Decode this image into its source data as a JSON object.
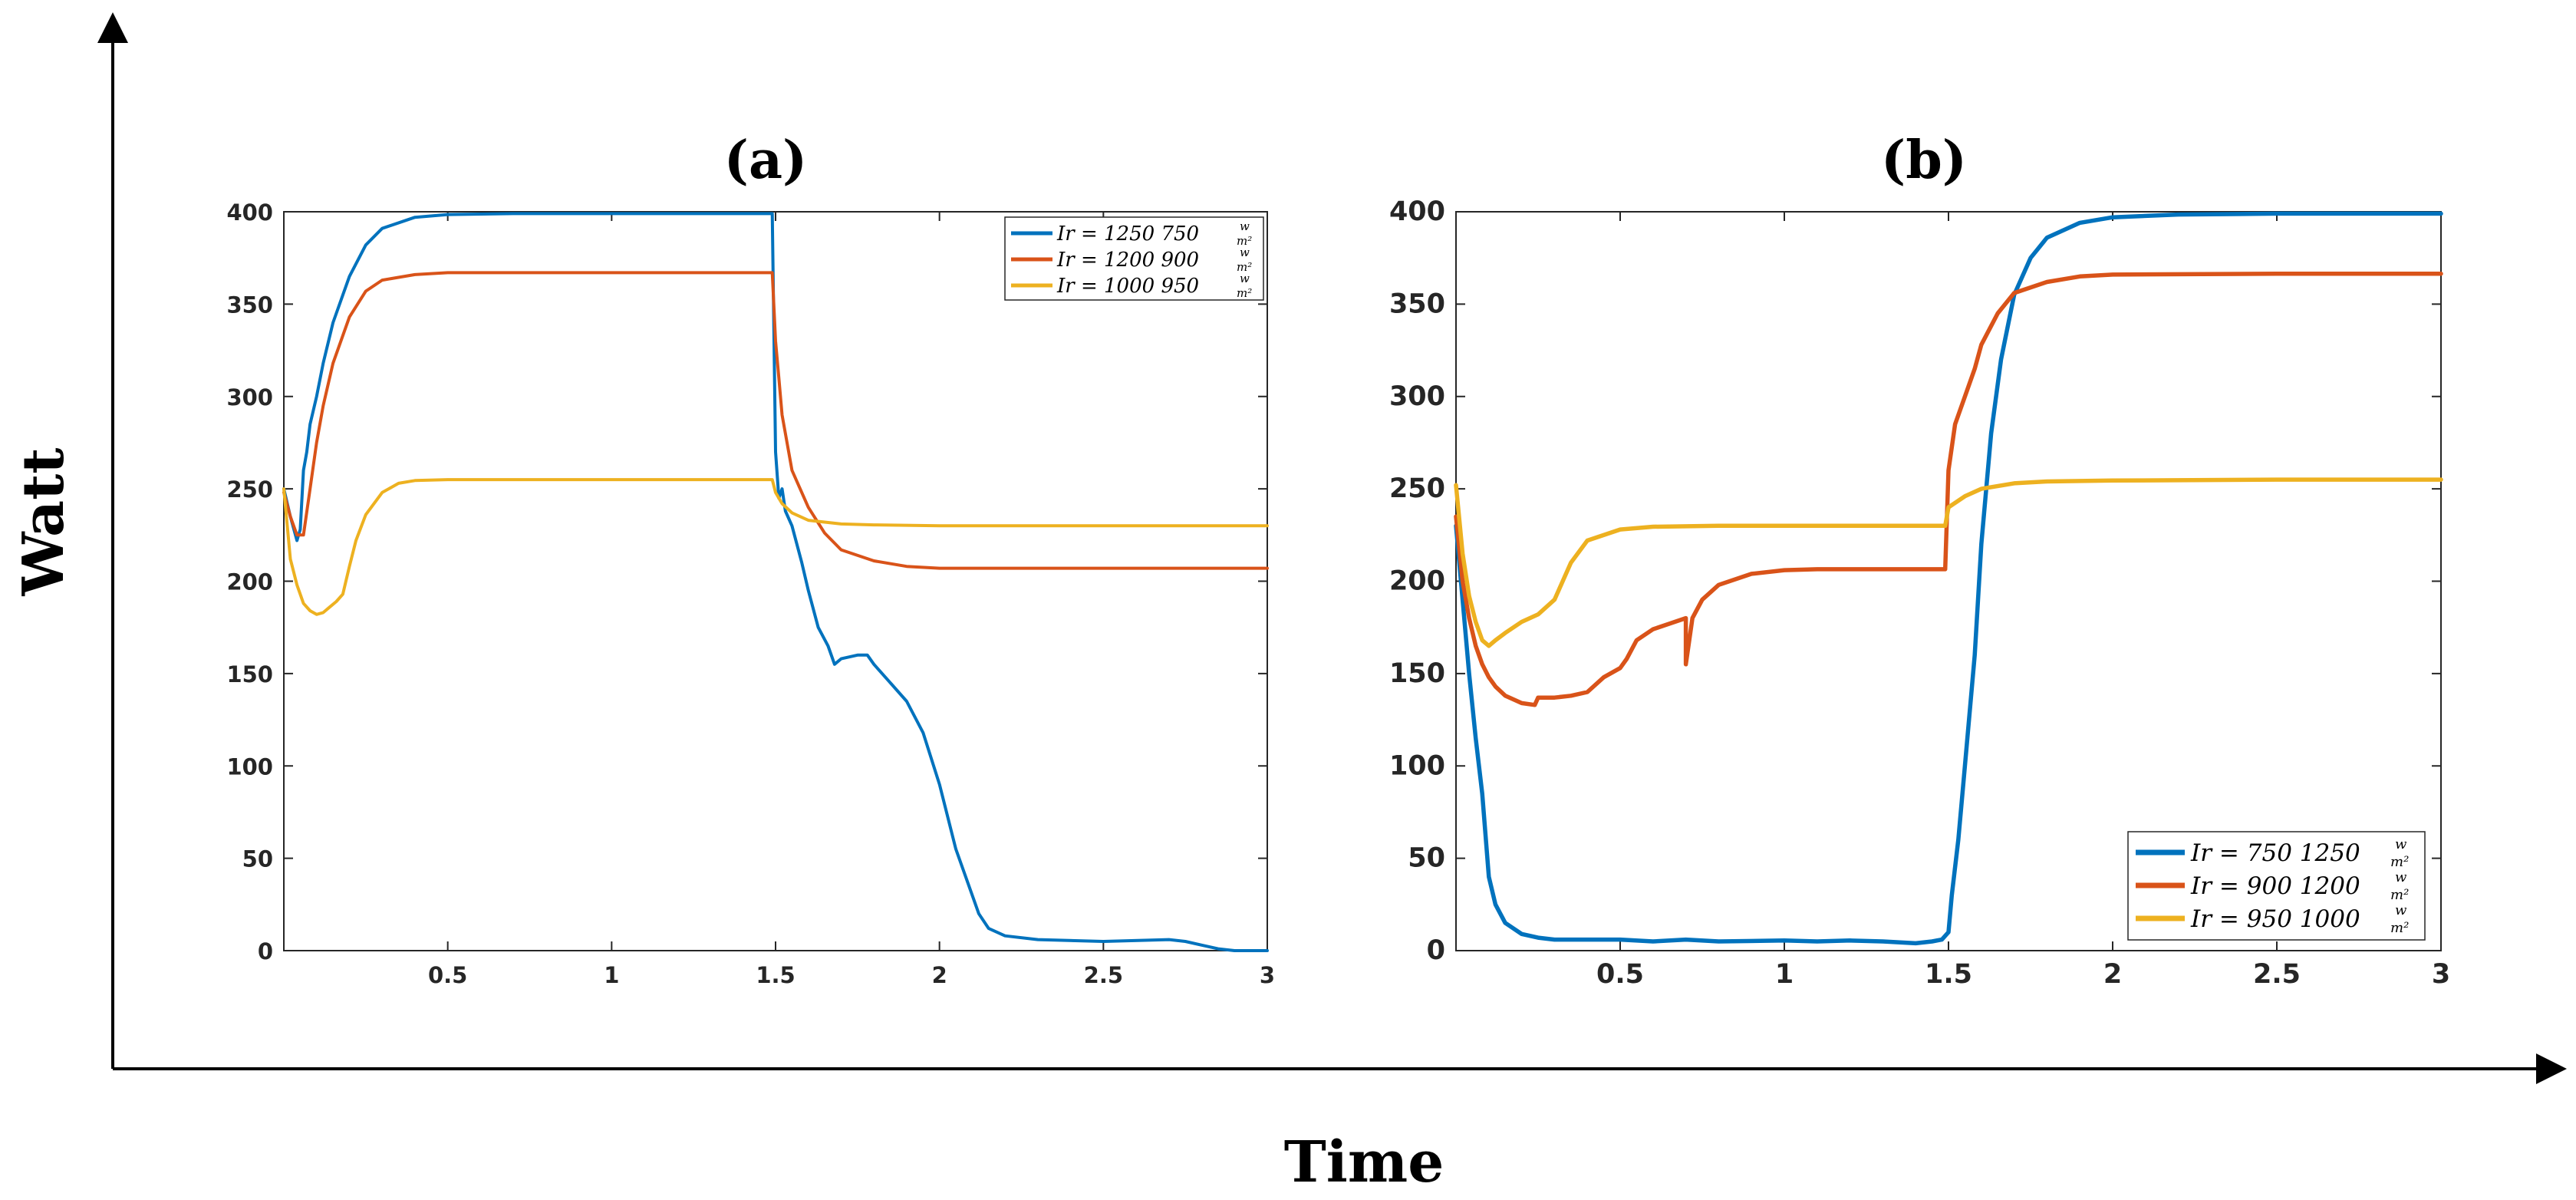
{
  "figure": {
    "ylabel": "Watt",
    "xlabel": "Time"
  },
  "chart_data": [
    {
      "type": "line",
      "panel": "a",
      "title": "(a)",
      "xlabel": "",
      "ylabel": "",
      "xlim": [
        0,
        3
      ],
      "ylim": [
        0,
        400
      ],
      "xticks": [
        "0.5",
        "1",
        "1.5",
        "2",
        "2.5",
        "3"
      ],
      "yticks": [
        "0",
        "50",
        "100",
        "150",
        "200",
        "250",
        "300",
        "350",
        "400"
      ],
      "legend_position": "top-right",
      "series": [
        {
          "name": "Ir = 1250 750 w/m²",
          "legend_main": "Ir = 1250 750",
          "legend_num": "w",
          "legend_den": "m²",
          "color": "#0072BD",
          "points": [
            [
              0,
              250
            ],
            [
              0.02,
              235
            ],
            [
              0.04,
              222
            ],
            [
              0.05,
              228
            ],
            [
              0.06,
              260
            ],
            [
              0.07,
              270
            ],
            [
              0.08,
              285
            ],
            [
              0.1,
              300
            ],
            [
              0.12,
              318
            ],
            [
              0.15,
              340
            ],
            [
              0.2,
              365
            ],
            [
              0.25,
              382
            ],
            [
              0.3,
              391
            ],
            [
              0.4,
              397
            ],
            [
              0.5,
              398.5
            ],
            [
              0.7,
              399
            ],
            [
              1.0,
              399
            ],
            [
              1.49,
              399
            ],
            [
              1.5,
              270
            ],
            [
              1.51,
              245
            ],
            [
              1.52,
              250
            ],
            [
              1.53,
              238
            ],
            [
              1.55,
              230
            ],
            [
              1.58,
              210
            ],
            [
              1.6,
              195
            ],
            [
              1.63,
              175
            ],
            [
              1.66,
              165
            ],
            [
              1.68,
              155
            ],
            [
              1.7,
              158
            ],
            [
              1.75,
              160
            ],
            [
              1.78,
              160
            ],
            [
              1.8,
              155
            ],
            [
              1.85,
              145
            ],
            [
              1.9,
              135
            ],
            [
              1.95,
              118
            ],
            [
              2.0,
              90
            ],
            [
              2.05,
              55
            ],
            [
              2.1,
              30
            ],
            [
              2.12,
              20
            ],
            [
              2.15,
              12
            ],
            [
              2.2,
              8
            ],
            [
              2.3,
              6
            ],
            [
              2.5,
              5
            ],
            [
              2.7,
              6
            ],
            [
              2.75,
              5
            ],
            [
              2.8,
              3
            ],
            [
              2.85,
              1
            ],
            [
              2.9,
              0
            ],
            [
              3,
              0
            ]
          ]
        },
        {
          "name": "Ir = 1200 900 w/m²",
          "legend_main": "Ir = 1200 900",
          "legend_num": "w",
          "legend_den": "m²",
          "color": "#D95319",
          "points": [
            [
              0,
              248
            ],
            [
              0.02,
              235
            ],
            [
              0.04,
              225
            ],
            [
              0.06,
              225
            ],
            [
              0.08,
              250
            ],
            [
              0.1,
              275
            ],
            [
              0.12,
              295
            ],
            [
              0.15,
              318
            ],
            [
              0.2,
              343
            ],
            [
              0.25,
              357
            ],
            [
              0.3,
              363
            ],
            [
              0.4,
              366
            ],
            [
              0.5,
              367
            ],
            [
              1.0,
              367
            ],
            [
              1.49,
              367
            ],
            [
              1.5,
              330
            ],
            [
              1.51,
              310
            ],
            [
              1.52,
              290
            ],
            [
              1.55,
              260
            ],
            [
              1.6,
              240
            ],
            [
              1.65,
              226
            ],
            [
              1.7,
              217
            ],
            [
              1.8,
              211
            ],
            [
              1.9,
              208
            ],
            [
              2.0,
              207
            ],
            [
              2.5,
              207
            ],
            [
              3,
              207
            ]
          ]
        },
        {
          "name": "Ir = 1000 950 w/m²",
          "legend_main": "Ir = 1000 950",
          "legend_num": "w",
          "legend_den": "m²",
          "color": "#EDB120",
          "points": [
            [
              0,
              250
            ],
            [
              0.02,
              212
            ],
            [
              0.04,
              198
            ],
            [
              0.06,
              188
            ],
            [
              0.08,
              184
            ],
            [
              0.1,
              182
            ],
            [
              0.12,
              183
            ],
            [
              0.14,
              186
            ],
            [
              0.16,
              189
            ],
            [
              0.18,
              193
            ],
            [
              0.2,
              208
            ],
            [
              0.22,
              222
            ],
            [
              0.25,
              236
            ],
            [
              0.3,
              248
            ],
            [
              0.35,
              253
            ],
            [
              0.4,
              254.5
            ],
            [
              0.5,
              255
            ],
            [
              1.0,
              255
            ],
            [
              1.49,
              255
            ],
            [
              1.5,
              248
            ],
            [
              1.52,
              242
            ],
            [
              1.55,
              237
            ],
            [
              1.6,
              233
            ],
            [
              1.7,
              231
            ],
            [
              1.8,
              230.5
            ],
            [
              2.0,
              230
            ],
            [
              3,
              230
            ]
          ]
        }
      ]
    },
    {
      "type": "line",
      "panel": "b",
      "title": "(b)",
      "xlabel": "",
      "ylabel": "",
      "xlim": [
        0,
        3
      ],
      "ylim": [
        0,
        400
      ],
      "xticks": [
        "0.5",
        "1",
        "1.5",
        "2",
        "2.5",
        "3"
      ],
      "yticks": [
        "0",
        "50",
        "100",
        "150",
        "200",
        "250",
        "300",
        "350",
        "400"
      ],
      "legend_position": "bottom-right",
      "series": [
        {
          "name": "Ir = 750 1250 w/m²",
          "legend_main": "Ir = 750 1250",
          "legend_num": "w",
          "legend_den": "m²",
          "color": "#0072BD",
          "points": [
            [
              0,
              230
            ],
            [
              0.02,
              190
            ],
            [
              0.04,
              150
            ],
            [
              0.06,
              115
            ],
            [
              0.08,
              85
            ],
            [
              0.1,
              40
            ],
            [
              0.12,
              25
            ],
            [
              0.15,
              15
            ],
            [
              0.2,
              9
            ],
            [
              0.25,
              7
            ],
            [
              0.3,
              6
            ],
            [
              0.5,
              6
            ],
            [
              0.6,
              5
            ],
            [
              0.7,
              6
            ],
            [
              0.8,
              5
            ],
            [
              1.0,
              5.5
            ],
            [
              1.1,
              5
            ],
            [
              1.2,
              5.5
            ],
            [
              1.3,
              5
            ],
            [
              1.4,
              4
            ],
            [
              1.45,
              5
            ],
            [
              1.48,
              6
            ],
            [
              1.5,
              10
            ],
            [
              1.51,
              30
            ],
            [
              1.53,
              60
            ],
            [
              1.55,
              100
            ],
            [
              1.58,
              160
            ],
            [
              1.6,
              220
            ],
            [
              1.63,
              280
            ],
            [
              1.66,
              320
            ],
            [
              1.7,
              355
            ],
            [
              1.75,
              375
            ],
            [
              1.8,
              386
            ],
            [
              1.9,
              394
            ],
            [
              2.0,
              397
            ],
            [
              2.2,
              398.5
            ],
            [
              2.5,
              399
            ],
            [
              3,
              399
            ]
          ]
        },
        {
          "name": "Ir = 900 1200 w/m²",
          "legend_main": "Ir = 900 1200",
          "legend_num": "w",
          "legend_den": "m²",
          "color": "#D95319",
          "points": [
            [
              0,
              235
            ],
            [
              0.02,
              200
            ],
            [
              0.04,
              180
            ],
            [
              0.06,
              165
            ],
            [
              0.08,
              155
            ],
            [
              0.1,
              148
            ],
            [
              0.12,
              143
            ],
            [
              0.15,
              138
            ],
            [
              0.2,
              134
            ],
            [
              0.24,
              133
            ],
            [
              0.25,
              137
            ],
            [
              0.3,
              137
            ],
            [
              0.35,
              138
            ],
            [
              0.4,
              140
            ],
            [
              0.45,
              148
            ],
            [
              0.5,
              153
            ],
            [
              0.52,
              158
            ],
            [
              0.55,
              168
            ],
            [
              0.6,
              174
            ],
            [
              0.65,
              177
            ],
            [
              0.7,
              180
            ],
            [
              0.7,
              155
            ],
            [
              0.72,
              180
            ],
            [
              0.75,
              190
            ],
            [
              0.8,
              198
            ],
            [
              0.9,
              204
            ],
            [
              1.0,
              206
            ],
            [
              1.1,
              206.5
            ],
            [
              1.3,
              206.5
            ],
            [
              1.49,
              206.5
            ],
            [
              1.5,
              260
            ],
            [
              1.52,
              285
            ],
            [
              1.55,
              300
            ],
            [
              1.58,
              315
            ],
            [
              1.6,
              328
            ],
            [
              1.65,
              345
            ],
            [
              1.7,
              356
            ],
            [
              1.8,
              362
            ],
            [
              1.9,
              365
            ],
            [
              2.0,
              366
            ],
            [
              2.5,
              366.5
            ],
            [
              3,
              366.5
            ]
          ]
        },
        {
          "name": "Ir = 950 1000 w/m²",
          "legend_main": "Ir = 950 1000",
          "legend_num": "w",
          "legend_den": "m²",
          "color": "#EDB120",
          "points": [
            [
              0,
              252
            ],
            [
              0.02,
              215
            ],
            [
              0.04,
              192
            ],
            [
              0.06,
              178
            ],
            [
              0.08,
              168
            ],
            [
              0.1,
              165
            ],
            [
              0.12,
              168
            ],
            [
              0.15,
              172
            ],
            [
              0.2,
              178
            ],
            [
              0.25,
              182
            ],
            [
              0.3,
              190
            ],
            [
              0.35,
              210
            ],
            [
              0.4,
              222
            ],
            [
              0.5,
              228
            ],
            [
              0.6,
              229.5
            ],
            [
              0.8,
              230
            ],
            [
              1.0,
              230
            ],
            [
              1.49,
              230
            ],
            [
              1.5,
              240
            ],
            [
              1.55,
              246
            ],
            [
              1.6,
              250
            ],
            [
              1.7,
              253
            ],
            [
              1.8,
              254
            ],
            [
              2.0,
              254.5
            ],
            [
              2.5,
              255
            ],
            [
              3,
              255
            ]
          ]
        }
      ]
    }
  ]
}
